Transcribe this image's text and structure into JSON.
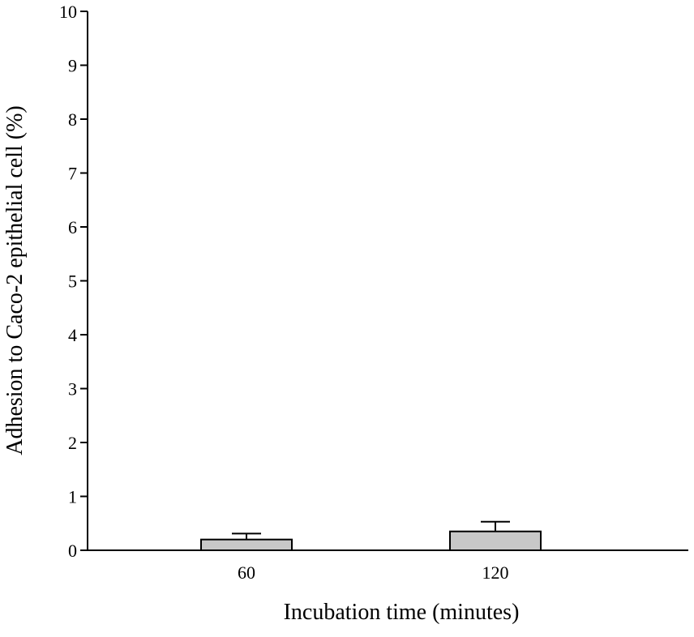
{
  "chart_data": {
    "type": "bar",
    "title": "",
    "xlabel": "Incubation time (minutes)",
    "ylabel": "Adhesion to Caco-2 epithelial cell (%)",
    "categories": [
      "60",
      "120"
    ],
    "values": [
      0.2,
      0.35
    ],
    "error_plus": [
      0.11,
      0.18
    ],
    "ylim": [
      0,
      10
    ],
    "yticks": [
      0,
      1,
      2,
      3,
      4,
      5,
      6,
      7,
      8,
      9,
      10
    ],
    "ytick_labels": [
      "0",
      "1",
      "2",
      "3",
      "4",
      "5",
      "6",
      "7",
      "8",
      "9",
      "10"
    ],
    "grid": false,
    "legend": "none",
    "colors": {
      "bar_fill": "#c8c8c8",
      "stroke": "#000000"
    }
  }
}
